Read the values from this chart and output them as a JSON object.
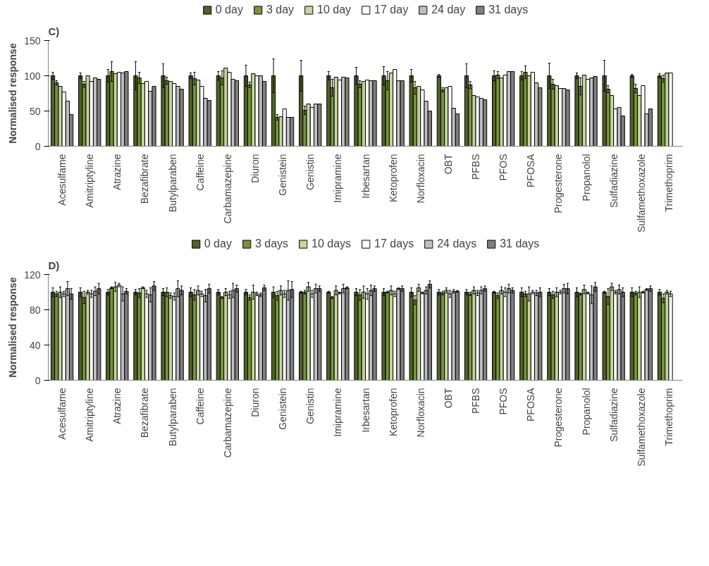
{
  "chart_data": [
    {
      "type": "bar",
      "title": "C)",
      "ylabel": "Normalised response",
      "legend": "top",
      "grid": false,
      "ylim": [
        0,
        150
      ],
      "yticks": [
        0,
        50,
        100,
        150
      ],
      "categories": [
        "Acesulfame",
        "Amitriptyline",
        "Atrazine",
        "Bezafibrate",
        "Butylparaben",
        "Caffeine",
        "Carbamazepine",
        "Diuron",
        "Genistein",
        "Genistin",
        "Imipramine",
        "Irbesartan",
        "Ketoprofen",
        "Norfloxacin",
        "OBT",
        "PFBS",
        "PFOS",
        "PFOSA",
        "Progesterone",
        "Propanolol",
        "Sulfadiazine",
        "Sulfamethoxazole",
        "Trimethoprim"
      ],
      "series": [
        {
          "name": "0 day",
          "color": "#4f6228",
          "values": [
            100,
            100,
            100,
            100,
            100,
            100,
            100,
            100,
            100,
            100,
            100,
            100,
            100,
            100,
            100,
            100,
            100,
            100,
            100,
            100,
            100,
            100,
            100
          ],
          "errors": [
            5,
            4,
            9,
            20,
            17,
            4,
            6,
            15,
            24,
            22,
            6,
            12,
            13,
            9,
            2,
            17,
            7,
            6,
            18,
            4,
            22,
            2,
            3
          ]
        },
        {
          "name": "3 day",
          "color": "#77933c",
          "values": [
            90,
            88,
            106,
            97,
            93,
            96,
            97,
            87,
            41,
            51,
            83,
            88,
            93,
            83,
            80,
            87,
            101,
            105,
            88,
            85,
            81,
            82,
            96
          ],
          "errors": [
            3,
            4,
            14,
            8,
            5,
            9,
            10,
            4,
            4,
            6,
            12,
            5,
            13,
            9,
            3,
            5,
            5,
            9,
            7,
            12,
            5,
            6,
            5
          ]
        },
        {
          "name": "10 day",
          "color": "#c3d69b",
          "values": [
            85,
            100,
            103,
            89,
            92,
            94,
            111,
            103,
            42,
            60,
            98,
            92,
            104,
            85,
            83,
            72,
            97,
            100,
            86,
            101,
            72,
            72,
            104
          ]
        },
        {
          "name": "17 day",
          "color": "#ffffff",
          "values": [
            77,
            92,
            105,
            92,
            89,
            85,
            105,
            100,
            53,
            55,
            94,
            94,
            109,
            80,
            85,
            70,
            101,
            105,
            82,
            95,
            53,
            86,
            104
          ]
        },
        {
          "name": "24 day",
          "color": "#bfbfbf",
          "values": [
            64,
            97,
            104,
            78,
            85,
            68,
            95,
            100,
            41,
            60,
            98,
            93,
            93,
            64,
            54,
            68,
            106,
            90,
            82,
            97,
            55,
            46,
            null
          ]
        },
        {
          "name": "31 days",
          "color": "#7f7f7f",
          "values": [
            45,
            95,
            106,
            85,
            81,
            65,
            93,
            92,
            41,
            60,
            97,
            93,
            93,
            50,
            46,
            66,
            106,
            83,
            80,
            99,
            43,
            53,
            null
          ]
        }
      ]
    },
    {
      "type": "bar",
      "title": "D)",
      "ylabel": "Normalised response",
      "legend": "top",
      "grid": false,
      "ylim": [
        0,
        120
      ],
      "yticks": [
        0,
        40,
        80,
        120
      ],
      "categories": [
        "Acesulfame",
        "Amitriptyline",
        "Atrazine",
        "Bezafibrate",
        "Butylparaben",
        "Caffeine",
        "Carbamazepine",
        "Diuron",
        "Genistein",
        "Genistin",
        "Imipramine",
        "Irbesartan",
        "Ketoprofen",
        "Norfloxacin",
        "OBT",
        "PFBS",
        "PFOS",
        "PFOSA",
        "Progesterone",
        "Propanolol",
        "Sulfadiazine",
        "Sulfamethoxazole",
        "Trimethoprim"
      ],
      "series": [
        {
          "name": "0 day",
          "color": "#4f6228",
          "values": [
            100,
            100,
            100,
            100,
            100,
            100,
            100,
            100,
            100,
            100,
            100,
            100,
            100,
            100,
            100,
            100,
            100,
            100,
            100,
            100,
            100,
            100,
            100
          ],
          "errors": [
            5,
            5,
            3,
            3,
            4,
            5,
            3,
            3,
            6,
            1,
            1,
            4,
            4,
            5,
            3,
            3,
            1,
            5,
            4,
            5,
            1,
            5,
            3
          ]
        },
        {
          "name": "3 days",
          "color": "#77933c",
          "values": [
            98,
            94,
            105,
            99,
            100,
            97,
            94,
            94,
            96,
            100,
            94,
            97,
            100,
            91,
            99,
            98,
            96,
            98,
            97,
            98,
            95,
            99,
            93
          ],
          "errors": [
            3,
            7,
            1,
            5,
            5,
            6,
            1,
            3,
            5,
            2,
            1,
            6,
            1,
            5,
            2,
            2,
            3,
            3,
            4,
            1,
            9,
            2,
            5
          ]
        },
        {
          "name": "10 days",
          "color": "#c3d69b",
          "values": [
            100,
            100,
            106,
            105,
            96,
            102,
            100,
            100,
            102,
            106,
            102,
            100,
            102,
            105,
            102,
            102,
            102,
            98,
            100,
            103,
            106,
            100,
            100
          ],
          "errors": [
            6,
            2,
            5,
            1,
            3,
            5,
            4,
            8,
            5,
            5,
            5,
            7,
            5,
            4,
            3,
            4,
            4,
            8,
            5,
            5,
            4,
            6,
            2
          ]
        },
        {
          "name": "17 days",
          "color": "#ffffff",
          "values": [
            98,
            98,
            108,
            98,
            95,
            98,
            97,
            98,
            98,
            98,
            99,
            98,
            98,
            99,
            98,
            99,
            100,
            100,
            100,
            99,
            100,
            100,
            98
          ],
          "errors": [
            3,
            4,
            2,
            4,
            4,
            3,
            4,
            2,
            4,
            4,
            1,
            6,
            3,
            1,
            4,
            3,
            5,
            2,
            2,
            1,
            2,
            1,
            3
          ]
        },
        {
          "name": "24 days",
          "color": "#bfbfbf",
          "values": [
            104,
            101,
            98,
            97,
            104,
            96,
            102,
            97,
            102,
            104,
            104,
            102,
            104,
            102,
            101,
            102,
            104,
            99,
            104,
            97,
            103,
            103,
            null
          ],
          "errors": [
            8,
            5,
            8,
            8,
            9,
            7,
            8,
            2,
            11,
            5,
            5,
            6,
            1,
            4,
            2,
            4,
            5,
            3,
            5,
            10,
            5,
            1,
            null
          ]
        },
        {
          "name": "31 days",
          "color": "#7f7f7f",
          "values": [
            98,
            104,
            101,
            107,
            102,
            104,
            104,
            105,
            103,
            104,
            105,
            104,
            104,
            109,
            101,
            104,
            102,
            100,
            104,
            106,
            100,
            104,
            null
          ],
          "errors": [
            6,
            6,
            3,
            5,
            5,
            5,
            4,
            3,
            9,
            3,
            1,
            3,
            3,
            4,
            1,
            3,
            3,
            5,
            6,
            5,
            5,
            3,
            null
          ]
        }
      ]
    }
  ]
}
